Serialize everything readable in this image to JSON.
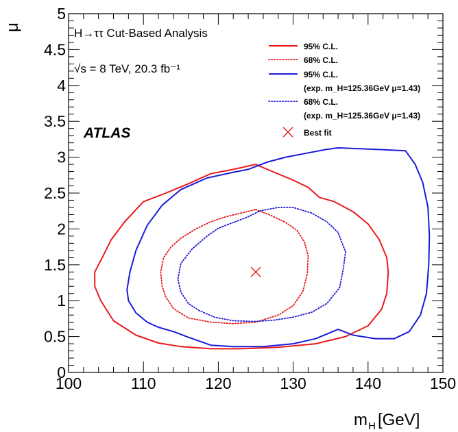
{
  "chart_data": {
    "type": "contour",
    "xlabel": "m_H [GeV]",
    "ylabel": "μ",
    "xlim": [
      100,
      150
    ],
    "ylim": [
      0,
      5
    ],
    "x_ticks": [
      "100",
      "110",
      "120",
      "130",
      "140",
      "150"
    ],
    "y_ticks": [
      "0",
      "0.5",
      "1",
      "1.5",
      "2",
      "2.5",
      "3",
      "3.5",
      "4",
      "4.5",
      "5"
    ],
    "annotations": {
      "analysis": "H→ττ Cut-Based Analysis",
      "energy": "√s = 8 TeV, 20.3 fb⁻¹",
      "experiment": "ATLAS"
    },
    "legend": [
      {
        "label": "95% C.L.",
        "sublabel": "",
        "color": "#e8191b",
        "style": "solid"
      },
      {
        "label": "68% C.L.",
        "sublabel": "",
        "color": "#e8191b",
        "style": "dotted"
      },
      {
        "label": "95% C.L.",
        "sublabel": "(exp. m_H=125.36GeV  μ=1.43)",
        "color": "#1a1adb",
        "style": "solid"
      },
      {
        "label": "68% C.L.",
        "sublabel": "(exp. m_H=125.36GeV  μ=1.43)",
        "color": "#1a1adb",
        "style": "dotted"
      },
      {
        "label": "Best fit",
        "sublabel": "",
        "color": "#e8191b",
        "style": "marker-x"
      }
    ],
    "best_fit": {
      "x": 125,
      "y": 1.4
    },
    "series": [
      {
        "name": "95% C.L.",
        "color": "#e8191b",
        "style": "solid",
        "points": [
          [
            110,
            2.38
          ],
          [
            113,
            2.5
          ],
          [
            116,
            2.63
          ],
          [
            119,
            2.77
          ],
          [
            122,
            2.83
          ],
          [
            125,
            2.9
          ],
          [
            127,
            2.81
          ],
          [
            130,
            2.68
          ],
          [
            132,
            2.58
          ],
          [
            133.5,
            2.44
          ],
          [
            135.5,
            2.38
          ],
          [
            138,
            2.24
          ],
          [
            140,
            2.07
          ],
          [
            141.5,
            1.85
          ],
          [
            142.5,
            1.6
          ],
          [
            142.7,
            1.4
          ],
          [
            142.5,
            1.1
          ],
          [
            141.8,
            0.88
          ],
          [
            140,
            0.65
          ],
          [
            137,
            0.5
          ],
          [
            133,
            0.4
          ],
          [
            128,
            0.35
          ],
          [
            123,
            0.33
          ],
          [
            119,
            0.33
          ],
          [
            115,
            0.36
          ],
          [
            112,
            0.41
          ],
          [
            109,
            0.52
          ],
          [
            106,
            0.72
          ],
          [
            104.3,
            1.0
          ],
          [
            103.5,
            1.2
          ],
          [
            103.5,
            1.4
          ],
          [
            104.5,
            1.6
          ],
          [
            105.7,
            1.85
          ],
          [
            107.5,
            2.1
          ],
          [
            110,
            2.38
          ]
        ]
      },
      {
        "name": "68% C.L.",
        "color": "#e8191b",
        "style": "dotted",
        "points": [
          [
            125,
            2.27
          ],
          [
            127,
            2.19
          ],
          [
            129,
            2.09
          ],
          [
            130.5,
            1.98
          ],
          [
            131.5,
            1.82
          ],
          [
            132,
            1.63
          ],
          [
            131.9,
            1.38
          ],
          [
            131.3,
            1.13
          ],
          [
            130,
            0.93
          ],
          [
            128,
            0.8
          ],
          [
            125,
            0.7
          ],
          [
            122,
            0.68
          ],
          [
            119,
            0.7
          ],
          [
            116,
            0.76
          ],
          [
            114,
            0.89
          ],
          [
            113,
            1.05
          ],
          [
            112.5,
            1.2
          ],
          [
            112.3,
            1.4
          ],
          [
            112.7,
            1.6
          ],
          [
            113.7,
            1.75
          ],
          [
            115,
            1.87
          ],
          [
            117,
            2.0
          ],
          [
            119,
            2.1
          ],
          [
            121,
            2.17
          ],
          [
            123,
            2.22
          ],
          [
            125,
            2.27
          ]
        ]
      },
      {
        "name": "95% C.L. (exp.)",
        "color": "#1a1adb",
        "style": "solid",
        "points": [
          [
            124,
            2.83
          ],
          [
            126.5,
            2.93
          ],
          [
            129,
            3.0
          ],
          [
            132,
            3.06
          ],
          [
            134.5,
            3.11
          ],
          [
            136,
            3.13
          ],
          [
            141,
            3.11
          ],
          [
            145,
            3.09
          ],
          [
            146.3,
            2.9
          ],
          [
            147.3,
            2.65
          ],
          [
            148,
            2.3
          ],
          [
            148.2,
            1.9
          ],
          [
            148.1,
            1.5
          ],
          [
            147.8,
            1.1
          ],
          [
            147,
            0.8
          ],
          [
            145.5,
            0.57
          ],
          [
            143.5,
            0.47
          ],
          [
            141,
            0.47
          ],
          [
            138,
            0.52
          ],
          [
            136,
            0.6
          ],
          [
            133,
            0.47
          ],
          [
            130,
            0.4
          ],
          [
            126,
            0.36
          ],
          [
            122,
            0.36
          ],
          [
            119,
            0.38
          ],
          [
            116,
            0.49
          ],
          [
            114,
            0.57
          ],
          [
            112,
            0.63
          ],
          [
            110.5,
            0.7
          ],
          [
            109,
            0.83
          ],
          [
            108,
            1.0
          ],
          [
            107.8,
            1.15
          ],
          [
            108.2,
            1.4
          ],
          [
            109,
            1.7
          ],
          [
            110.5,
            2.05
          ],
          [
            112.5,
            2.33
          ],
          [
            115,
            2.55
          ],
          [
            118.5,
            2.71
          ],
          [
            122,
            2.79
          ],
          [
            124,
            2.83
          ]
        ]
      },
      {
        "name": "68% C.L. (exp.)",
        "color": "#1a1adb",
        "style": "dotted",
        "points": [
          [
            125.5,
            2.25
          ],
          [
            128,
            2.3
          ],
          [
            130,
            2.3
          ],
          [
            132.5,
            2.22
          ],
          [
            134.5,
            2.1
          ],
          [
            136,
            1.95
          ],
          [
            137,
            1.68
          ],
          [
            136.7,
            1.45
          ],
          [
            136.2,
            1.18
          ],
          [
            134.5,
            0.96
          ],
          [
            132.5,
            0.84
          ],
          [
            130,
            0.77
          ],
          [
            127.5,
            0.73
          ],
          [
            125,
            0.71
          ],
          [
            122,
            0.72
          ],
          [
            119.5,
            0.77
          ],
          [
            117.5,
            0.86
          ],
          [
            116,
            0.96
          ],
          [
            115,
            1.12
          ],
          [
            114.6,
            1.3
          ],
          [
            115,
            1.52
          ],
          [
            116.5,
            1.72
          ],
          [
            118.5,
            1.9
          ],
          [
            120,
            2.01
          ],
          [
            122,
            2.09
          ],
          [
            124,
            2.17
          ],
          [
            125.5,
            2.25
          ]
        ]
      }
    ]
  }
}
